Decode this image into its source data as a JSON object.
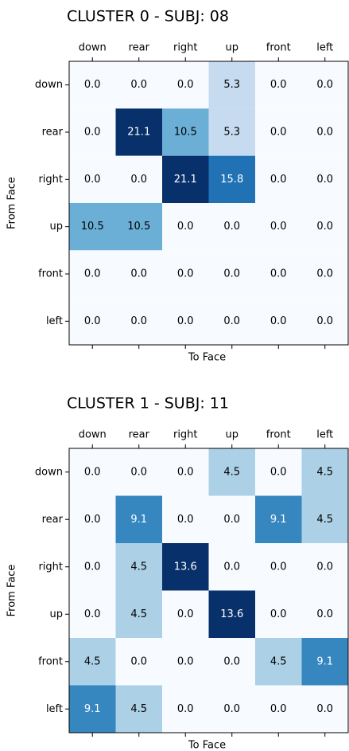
{
  "chart_data": [
    {
      "type": "heatmap",
      "title": "CLUSTER 0 - SUBJ: 08",
      "x_label": "To Face",
      "y_label": "From Face",
      "colormap": "Blues",
      "x": [
        "down",
        "rear",
        "right",
        "up",
        "front",
        "left"
      ],
      "y": [
        "down",
        "rear",
        "right",
        "up",
        "front",
        "left"
      ],
      "values": [
        [
          0,
          0,
          0,
          5.3,
          0,
          0
        ],
        [
          0,
          21.1,
          10.5,
          5.3,
          0,
          0
        ],
        [
          0,
          0,
          21.1,
          15.8,
          0,
          0
        ],
        [
          10.5,
          10.5,
          0,
          0,
          0,
          0
        ],
        [
          0,
          0,
          0,
          0,
          0,
          0
        ],
        [
          0,
          0,
          0,
          0,
          0,
          0
        ]
      ],
      "value_labels": [
        [
          "0.0",
          "0.0",
          "0.0",
          "5.3",
          "0.0",
          "0.0"
        ],
        [
          "0.0",
          "21.1",
          "10.5",
          "5.3",
          "0.0",
          "0.0"
        ],
        [
          "0.0",
          "0.0",
          "21.1",
          "15.8",
          "0.0",
          "0.0"
        ],
        [
          "10.5",
          "10.5",
          "0.0",
          "0.0",
          "0.0",
          "0.0"
        ],
        [
          "0.0",
          "0.0",
          "0.0",
          "0.0",
          "0.0",
          "0.0"
        ],
        [
          "0.0",
          "0.0",
          "0.0",
          "0.0",
          "0.0",
          "0.0"
        ]
      ]
    },
    {
      "type": "heatmap",
      "title": "CLUSTER 1 - SUBJ: 11",
      "x_label": "To Face",
      "y_label": "From Face",
      "colormap": "Blues",
      "x": [
        "down",
        "rear",
        "right",
        "up",
        "front",
        "left"
      ],
      "y": [
        "down",
        "rear",
        "right",
        "up",
        "front",
        "left"
      ],
      "values": [
        [
          0,
          0,
          0,
          4.5,
          0,
          4.5
        ],
        [
          0,
          9.1,
          0,
          0,
          9.1,
          4.5
        ],
        [
          0,
          4.5,
          13.6,
          0,
          0,
          0
        ],
        [
          0,
          4.5,
          0,
          13.6,
          0,
          0
        ],
        [
          4.5,
          0,
          0,
          0,
          4.5,
          9.1
        ],
        [
          9.1,
          4.5,
          0,
          0,
          0,
          0
        ]
      ],
      "value_labels": [
        [
          "0.0",
          "0.0",
          "0.0",
          "4.5",
          "0.0",
          "4.5"
        ],
        [
          "0.0",
          "9.1",
          "0.0",
          "0.0",
          "9.1",
          "4.5"
        ],
        [
          "0.0",
          "4.5",
          "13.6",
          "0.0",
          "0.0",
          "0.0"
        ],
        [
          "0.0",
          "4.5",
          "0.0",
          "13.6",
          "0.0",
          "0.0"
        ],
        [
          "4.5",
          "0.0",
          "0.0",
          "0.0",
          "4.5",
          "9.1"
        ],
        [
          "9.1",
          "4.5",
          "0.0",
          "0.0",
          "0.0",
          "0.0"
        ]
      ]
    }
  ]
}
